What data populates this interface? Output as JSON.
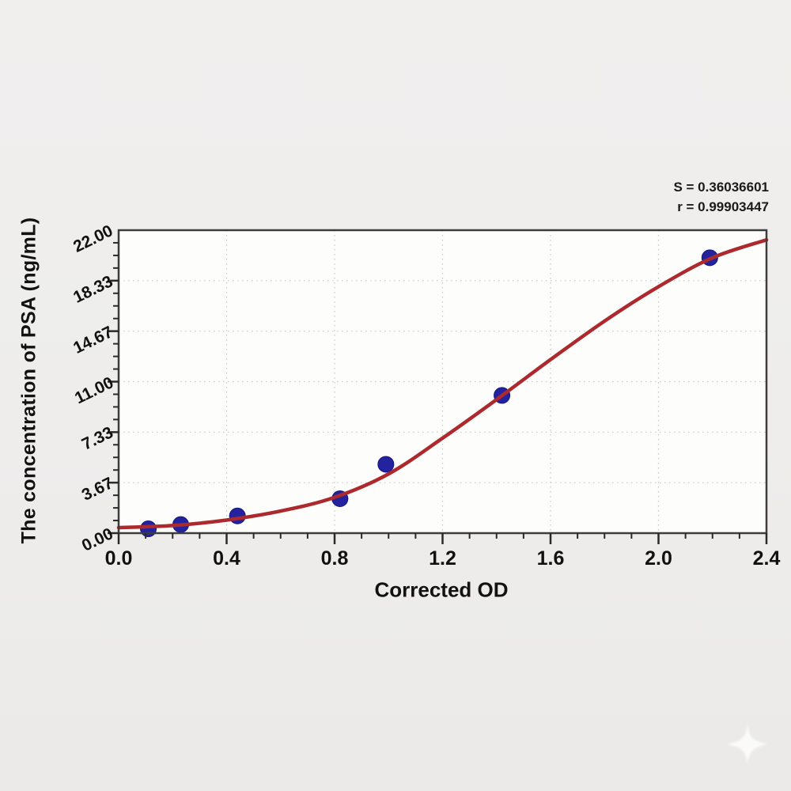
{
  "page": {
    "background_color": "#eeedec",
    "plot_background_color": "#fdfdfc"
  },
  "stats": {
    "s_line": "S = 0.36036601",
    "r_line": "r = 0.99903447"
  },
  "watermark": {
    "icon": "sparkle-star",
    "color": "#ffffff"
  },
  "chart_data": {
    "type": "scatter",
    "title": "",
    "xlabel": "Corrected OD",
    "ylabel": "The concentration of PSA (ng/mL)",
    "xlim": [
      0,
      2.4
    ],
    "ylim": [
      0,
      22
    ],
    "grid": "dotted",
    "grid_color": "#c7c7c7",
    "axis_color": "#3d3d3d",
    "x_ticks": {
      "values": [
        0,
        0.4,
        0.8,
        1.2,
        1.6,
        2.0,
        2.4
      ],
      "labels": [
        "0.0",
        "0.4",
        "0.8",
        "1.2",
        "1.6",
        "2.0",
        "2.4"
      ],
      "minor_step": 0.1
    },
    "y_ticks": {
      "values": [
        0,
        3.6667,
        7.3333,
        11,
        14.6667,
        18.3333,
        22
      ],
      "labels": [
        "0.00",
        "3.67",
        "7.33",
        "11.00",
        "14.67",
        "18.33",
        "22.00"
      ],
      "minor_step": 0.9167
    },
    "fit_stats": {
      "S": 0.36036601,
      "r": 0.99903447
    },
    "series": [
      {
        "name": "standard-points",
        "kind": "scatter",
        "color": "#23239f",
        "edge_color": "#15147c",
        "marker_radius": 10,
        "x": [
          0.11,
          0.23,
          0.44,
          0.82,
          0.99,
          1.42,
          2.19
        ],
        "y": [
          0.3125,
          0.625,
          1.25,
          2.5,
          5.0,
          10.0,
          20.0
        ]
      },
      {
        "name": "4PL-fit-curve",
        "kind": "line",
        "color": "#ac2a2e",
        "stroke_width": 4.5,
        "x": [
          0.0,
          0.2,
          0.4,
          0.6,
          0.8,
          1.0,
          1.2,
          1.4,
          1.6,
          1.8,
          2.0,
          2.2,
          2.4
        ],
        "y": [
          0.4,
          0.55,
          0.95,
          1.6,
          2.6,
          4.3,
          6.9,
          9.7,
          12.6,
          15.4,
          17.9,
          20.0,
          21.3
        ]
      }
    ],
    "legend": null
  }
}
